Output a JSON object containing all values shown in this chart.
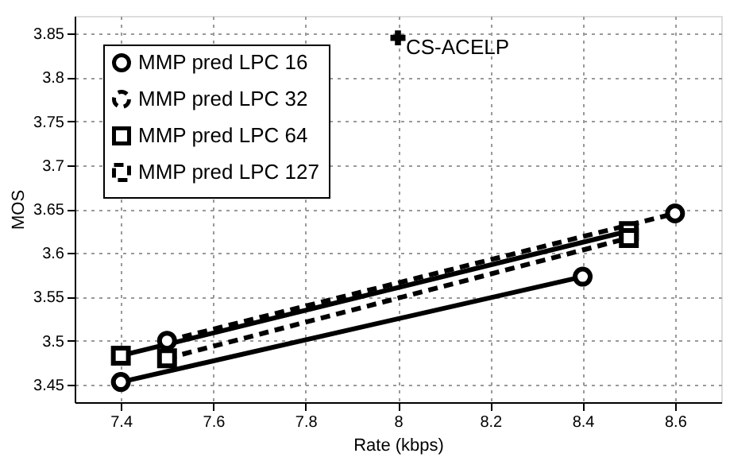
{
  "chart_data": {
    "type": "line",
    "xlabel": "Rate (kbps)",
    "ylabel": "MOS",
    "xlim": [
      7.3,
      8.7
    ],
    "xticks": [
      7.4,
      7.6,
      7.8,
      8,
      8.2,
      8.4,
      8.6
    ],
    "ylim": [
      3.43,
      3.87
    ],
    "yticks": [
      3.45,
      3.5,
      3.55,
      3.6,
      3.65,
      3.7,
      3.75,
      3.8,
      3.85
    ],
    "grid": true,
    "legend": "top left",
    "series": [
      {
        "name": "MMP pred LPC 16",
        "color": "#000000",
        "marker": "circle",
        "line_style": "solid",
        "x": [
          7.4,
          8.4
        ],
        "values": [
          3.453,
          3.573
        ]
      },
      {
        "name": "MMP pred LPC 32",
        "color": "#000000",
        "marker": "circle",
        "line_style": "dashed",
        "x": [
          7.5,
          8.6
        ],
        "values": [
          3.5,
          3.645
        ]
      },
      {
        "name": "MMP pred LPC 64",
        "color": "#000000",
        "marker": "square",
        "line_style": "solid",
        "x": [
          7.4,
          8.5
        ],
        "values": [
          3.483,
          3.625
        ]
      },
      {
        "name": "MMP pred LPC 127",
        "color": "#000000",
        "marker": "square",
        "line_style": "dashed",
        "x": [
          7.5,
          8.5
        ],
        "values": [
          3.48,
          3.617
        ]
      },
      {
        "name": "CS-ACELP",
        "type": "scatter",
        "color": "#000000",
        "marker": "cross",
        "x": [
          8
        ],
        "values": [
          3.845
        ]
      }
    ]
  }
}
